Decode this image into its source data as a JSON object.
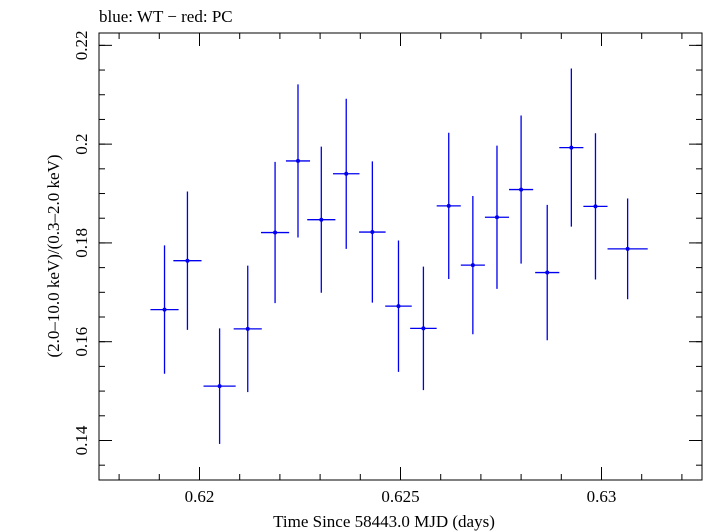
{
  "chart_data": {
    "type": "scatter",
    "title": "blue: WT − red: PC",
    "xlabel": "Time Since 58443.0 MJD (days)",
    "ylabel": "(2.0–10.0 keV)/(0.3–2.0 keV)",
    "xlim": [
      0.6175,
      0.6325
    ],
    "ylim": [
      0.132,
      0.2225
    ],
    "xticks": [
      {
        "value": 0.62,
        "label": "0.62"
      },
      {
        "value": 0.625,
        "label": "0.625"
      },
      {
        "value": 0.63,
        "label": "0.63"
      }
    ],
    "yticks": [
      {
        "value": 0.14,
        "label": "0.14"
      },
      {
        "value": 0.16,
        "label": "0.16"
      },
      {
        "value": 0.18,
        "label": "0.18"
      },
      {
        "value": 0.2,
        "label": "0.2"
      },
      {
        "value": 0.22,
        "label": "0.22"
      }
    ],
    "x_minor_step": 0.001,
    "y_minor_step": 0.005,
    "grid": false,
    "series": [
      {
        "color": "#0000ee",
        "points": [
          {
            "x": 0.61913,
            "y": 0.1665,
            "xerr": 0.00035,
            "yerr_lo": 0.013,
            "yerr_hi": 0.013
          },
          {
            "x": 0.6197,
            "y": 0.1764,
            "xerr": 0.00035,
            "yerr_lo": 0.014,
            "yerr_hi": 0.014
          },
          {
            "x": 0.6205,
            "y": 0.151,
            "xerr": 0.0004,
            "yerr_lo": 0.0117,
            "yerr_hi": 0.0117
          },
          {
            "x": 0.6212,
            "y": 0.1626,
            "xerr": 0.00035,
            "yerr_lo": 0.0128,
            "yerr_hi": 0.0128
          },
          {
            "x": 0.62188,
            "y": 0.1821,
            "xerr": 0.00035,
            "yerr_lo": 0.0143,
            "yerr_hi": 0.0143
          },
          {
            "x": 0.62245,
            "y": 0.1966,
            "xerr": 0.0003,
            "yerr_lo": 0.0155,
            "yerr_hi": 0.0155
          },
          {
            "x": 0.62303,
            "y": 0.1847,
            "xerr": 0.00035,
            "yerr_lo": 0.0148,
            "yerr_hi": 0.0148
          },
          {
            "x": 0.62365,
            "y": 0.194,
            "xerr": 0.00033,
            "yerr_lo": 0.0152,
            "yerr_hi": 0.0152
          },
          {
            "x": 0.6243,
            "y": 0.1822,
            "xerr": 0.00033,
            "yerr_lo": 0.0143,
            "yerr_hi": 0.0143
          },
          {
            "x": 0.62495,
            "y": 0.1672,
            "xerr": 0.00033,
            "yerr_lo": 0.0133,
            "yerr_hi": 0.0133
          },
          {
            "x": 0.62557,
            "y": 0.1627,
            "xerr": 0.00033,
            "yerr_lo": 0.0125,
            "yerr_hi": 0.0125
          },
          {
            "x": 0.6262,
            "y": 0.1875,
            "xerr": 0.0003,
            "yerr_lo": 0.0148,
            "yerr_hi": 0.0148
          },
          {
            "x": 0.6268,
            "y": 0.1755,
            "xerr": 0.0003,
            "yerr_lo": 0.014,
            "yerr_hi": 0.014
          },
          {
            "x": 0.6274,
            "y": 0.1852,
            "xerr": 0.0003,
            "yerr_lo": 0.0145,
            "yerr_hi": 0.0145
          },
          {
            "x": 0.628,
            "y": 0.1908,
            "xerr": 0.0003,
            "yerr_lo": 0.015,
            "yerr_hi": 0.015
          },
          {
            "x": 0.62865,
            "y": 0.174,
            "xerr": 0.0003,
            "yerr_lo": 0.0137,
            "yerr_hi": 0.0137
          },
          {
            "x": 0.62925,
            "y": 0.1993,
            "xerr": 0.0003,
            "yerr_lo": 0.016,
            "yerr_hi": 0.016
          },
          {
            "x": 0.62985,
            "y": 0.1874,
            "xerr": 0.0003,
            "yerr_lo": 0.0148,
            "yerr_hi": 0.0148
          },
          {
            "x": 0.63065,
            "y": 0.1788,
            "xerr": 0.0005,
            "yerr_lo": 0.0102,
            "yerr_hi": 0.0102
          }
        ]
      }
    ]
  }
}
